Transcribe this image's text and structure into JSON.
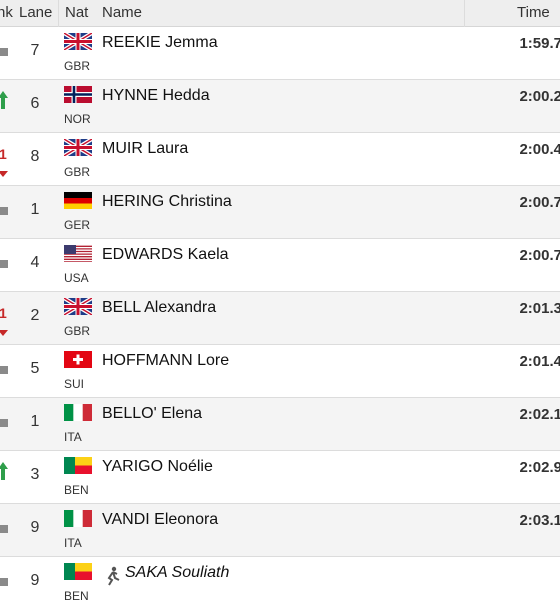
{
  "header": {
    "rank": "nk",
    "lane": "Lane",
    "nat": "Nat",
    "name": "Name",
    "time": "Time"
  },
  "rows": [
    {
      "lane": "7",
      "nat": "GBR",
      "name": "REEKIE Jemma",
      "time": "1:59.7"
    },
    {
      "lane": "6",
      "nat": "NOR",
      "name": "HYNNE Hedda",
      "time": "2:00.2"
    },
    {
      "change": "1",
      "lane": "8",
      "nat": "GBR",
      "name": "MUIR Laura",
      "time": "2:00.4"
    },
    {
      "lane": "1",
      "nat": "GER",
      "name": "HERING Christina",
      "time": "2:00.7"
    },
    {
      "lane": "4",
      "nat": "USA",
      "name": "EDWARDS Kaela",
      "time": "2:00.7"
    },
    {
      "change": "1",
      "lane": "2",
      "nat": "GBR",
      "name": "BELL Alexandra",
      "time": "2:01.3"
    },
    {
      "lane": "5",
      "nat": "SUI",
      "name": "HOFFMANN Lore",
      "time": "2:01.4"
    },
    {
      "lane": "1",
      "nat": "ITA",
      "name": "BELLO' Elena",
      "time": "2:02.1"
    },
    {
      "lane": "3",
      "nat": "BEN",
      "name": "YARIGO Noélie",
      "time": "2:02.9"
    },
    {
      "lane": "9",
      "nat": "ITA",
      "name": "VANDI Eleonora",
      "time": "2:03.1"
    },
    {
      "lane": "9",
      "nat": "BEN",
      "name": "SAKA Souliath"
    }
  ]
}
